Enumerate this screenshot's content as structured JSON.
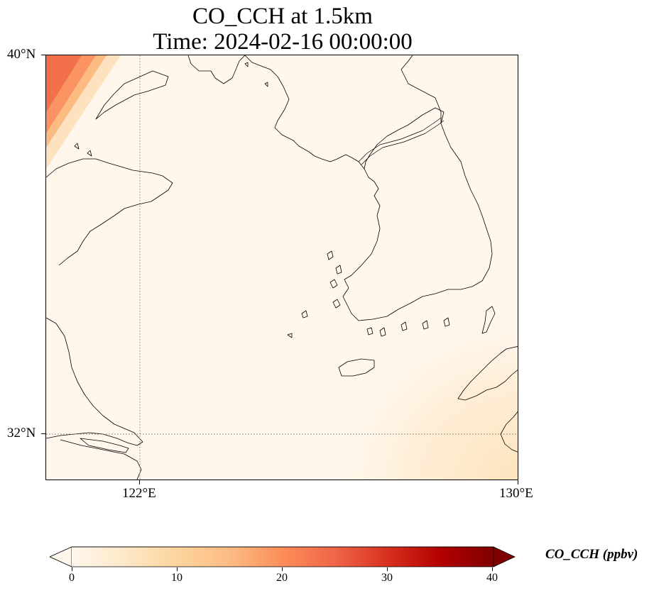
{
  "title": {
    "line1": "CO_CCH at 1.5km",
    "line2": "Time: 2024-02-16 00:00:00"
  },
  "map": {
    "extent": {
      "lon_min": 120.4,
      "lon_max": 130.0,
      "lat_min": 31.0,
      "lat_max": 40.0
    },
    "gridlines": {
      "lon": [
        122
      ],
      "lat": [
        32
      ],
      "style": "dotted"
    },
    "lon_ticks": [
      {
        "value": 122,
        "label": "122°E"
      },
      {
        "value": 130,
        "label": "130°E"
      }
    ],
    "lat_ticks": [
      {
        "value": 40,
        "label": "40°N"
      },
      {
        "value": 32,
        "label": "32°N"
      }
    ],
    "field_background": "#fff7ec",
    "features": [
      "coastline",
      "korean-peninsula",
      "jeju-island",
      "shandong-peninsula",
      "yangtze-estuary",
      "liaodong-peninsula"
    ]
  },
  "colorbar": {
    "label": "CO_CCH (ppbv)",
    "min": 0,
    "max": 40,
    "extend": "both",
    "colormap": "OrRd",
    "ticks": [
      {
        "value": 0,
        "label": "0"
      },
      {
        "value": 10,
        "label": "10"
      },
      {
        "value": 20,
        "label": "20"
      },
      {
        "value": 30,
        "label": "30"
      },
      {
        "value": 40,
        "label": "40"
      }
    ],
    "stops": [
      "#fff7ec",
      "#fee8c8",
      "#fdd49e",
      "#fdbb84",
      "#fc8d59",
      "#ef6548",
      "#d7301f",
      "#b30000",
      "#7f0000"
    ]
  }
}
